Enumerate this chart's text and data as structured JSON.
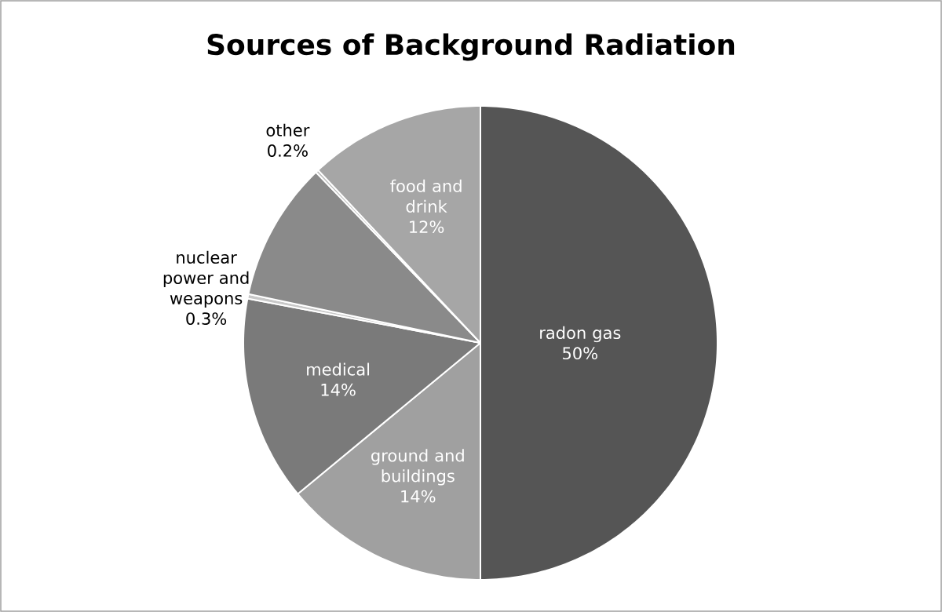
{
  "chart_data": {
    "type": "pie",
    "title": "Sources of Background Radiation",
    "categories": [
      "radon gas",
      "ground and buildings",
      "medical",
      "nuclear power and weapons",
      null,
      "other",
      "food and drink"
    ],
    "values": [
      50,
      14,
      14,
      0.3,
      9.5,
      0.2,
      12
    ],
    "colors": [
      "#555555",
      "#a0a0a0",
      "#7a7a7a",
      "#c8c8c8",
      "#8a8a8a",
      "#bcbcbc",
      "#a6a6a6"
    ],
    "value_labels": [
      "50%",
      "14%",
      "14%",
      "0.3%",
      null,
      "0.2%",
      "12%"
    ]
  }
}
